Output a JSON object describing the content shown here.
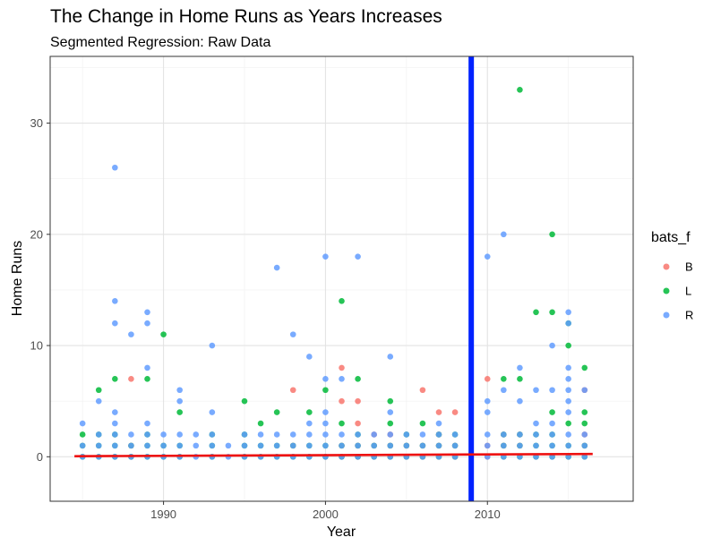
{
  "chart_data": {
    "type": "scatter",
    "title": "The Change in Home Runs as Years Increases",
    "subtitle": "Segmented Regression: Raw Data",
    "xlabel": "Year",
    "ylabel": "Home Runs",
    "xlim": [
      1983,
      2019
    ],
    "ylim": [
      -4,
      36
    ],
    "x_ticks": [
      1990,
      2000,
      2010
    ],
    "y_ticks": [
      0,
      10,
      20,
      30
    ],
    "grid": true,
    "legend": {
      "title": "bats_f",
      "position": "right",
      "entries": [
        {
          "label": "B",
          "color": "#F8766D"
        },
        {
          "label": "L",
          "color": "#00BA38"
        },
        {
          "label": "R",
          "color": "#619CFF"
        }
      ]
    },
    "vertical_line": {
      "x": 2009,
      "color": "#0022ff"
    },
    "regression_line": {
      "x": [
        1984.5,
        2016.5
      ],
      "y": [
        0.05,
        0.25
      ],
      "color": "#ee1111"
    },
    "series": [
      {
        "name": "B",
        "color": "#F8766D",
        "points": [
          [
            1988,
            7
          ],
          [
            1988,
            1
          ],
          [
            1988,
            0
          ],
          [
            1998,
            6
          ],
          [
            1998,
            1
          ],
          [
            2001,
            8
          ],
          [
            2001,
            5
          ],
          [
            2001,
            1
          ],
          [
            2001,
            0
          ],
          [
            2002,
            5
          ],
          [
            2002,
            3
          ],
          [
            2002,
            1
          ],
          [
            2002,
            0
          ],
          [
            2003,
            2
          ],
          [
            2003,
            1
          ],
          [
            2003,
            0
          ],
          [
            2004,
            2
          ],
          [
            2004,
            1
          ],
          [
            2004,
            0
          ],
          [
            2005,
            1
          ],
          [
            2005,
            0
          ],
          [
            2006,
            6
          ],
          [
            2006,
            1
          ],
          [
            2006,
            0
          ],
          [
            2007,
            4
          ],
          [
            2007,
            2
          ],
          [
            2007,
            1
          ],
          [
            2007,
            0
          ],
          [
            2008,
            4
          ],
          [
            2008,
            1
          ],
          [
            2008,
            0
          ],
          [
            2010,
            7
          ],
          [
            2010,
            1
          ],
          [
            2010,
            0
          ],
          [
            2011,
            2
          ],
          [
            2011,
            1
          ],
          [
            2012,
            2
          ],
          [
            2012,
            1
          ],
          [
            2016,
            6
          ],
          [
            2016,
            2
          ],
          [
            2016,
            1
          ]
        ]
      },
      {
        "name": "L",
        "color": "#00BA38",
        "points": [
          [
            1985,
            2
          ],
          [
            1985,
            1
          ],
          [
            1985,
            0
          ],
          [
            1986,
            6
          ],
          [
            1986,
            2
          ],
          [
            1986,
            1
          ],
          [
            1986,
            0
          ],
          [
            1987,
            7
          ],
          [
            1987,
            2
          ],
          [
            1987,
            1
          ],
          [
            1987,
            0
          ],
          [
            1988,
            1
          ],
          [
            1988,
            0
          ],
          [
            1989,
            7
          ],
          [
            1989,
            2
          ],
          [
            1989,
            1
          ],
          [
            1989,
            0
          ],
          [
            1990,
            11
          ],
          [
            1990,
            1
          ],
          [
            1990,
            0
          ],
          [
            1991,
            4
          ],
          [
            1991,
            1
          ],
          [
            1991,
            0
          ],
          [
            1993,
            2
          ],
          [
            1993,
            1
          ],
          [
            1993,
            0
          ],
          [
            1995,
            5
          ],
          [
            1995,
            2
          ],
          [
            1995,
            1
          ],
          [
            1995,
            0
          ],
          [
            1996,
            3
          ],
          [
            1996,
            1
          ],
          [
            1996,
            0
          ],
          [
            1997,
            4
          ],
          [
            1997,
            1
          ],
          [
            1997,
            0
          ],
          [
            1998,
            1
          ],
          [
            1998,
            0
          ],
          [
            1999,
            4
          ],
          [
            1999,
            1
          ],
          [
            1999,
            0
          ],
          [
            2000,
            6
          ],
          [
            2000,
            1
          ],
          [
            2000,
            0
          ],
          [
            2001,
            14
          ],
          [
            2001,
            3
          ],
          [
            2001,
            1
          ],
          [
            2001,
            0
          ],
          [
            2002,
            7
          ],
          [
            2002,
            2
          ],
          [
            2002,
            1
          ],
          [
            2002,
            0
          ],
          [
            2003,
            1
          ],
          [
            2003,
            0
          ],
          [
            2004,
            5
          ],
          [
            2004,
            3
          ],
          [
            2004,
            1
          ],
          [
            2004,
            0
          ],
          [
            2005,
            2
          ],
          [
            2005,
            1
          ],
          [
            2005,
            0
          ],
          [
            2006,
            3
          ],
          [
            2006,
            1
          ],
          [
            2006,
            0
          ],
          [
            2007,
            2
          ],
          [
            2007,
            1
          ],
          [
            2007,
            0
          ],
          [
            2008,
            2
          ],
          [
            2008,
            1
          ],
          [
            2008,
            0
          ],
          [
            2011,
            7
          ],
          [
            2011,
            2
          ],
          [
            2011,
            1
          ],
          [
            2011,
            0
          ],
          [
            2012,
            33
          ],
          [
            2012,
            7
          ],
          [
            2012,
            2
          ],
          [
            2012,
            1
          ],
          [
            2012,
            0
          ],
          [
            2013,
            13
          ],
          [
            2013,
            2
          ],
          [
            2013,
            1
          ],
          [
            2013,
            0
          ],
          [
            2014,
            20
          ],
          [
            2014,
            13
          ],
          [
            2014,
            4
          ],
          [
            2014,
            2
          ],
          [
            2014,
            1
          ],
          [
            2014,
            0
          ],
          [
            2015,
            12
          ],
          [
            2015,
            10
          ],
          [
            2015,
            3
          ],
          [
            2015,
            1
          ],
          [
            2015,
            0
          ],
          [
            2016,
            8
          ],
          [
            2016,
            4
          ],
          [
            2016,
            3
          ],
          [
            2016,
            1
          ],
          [
            2016,
            0
          ]
        ]
      },
      {
        "name": "R",
        "color": "#619CFF",
        "points": [
          [
            1985,
            3
          ],
          [
            1985,
            1
          ],
          [
            1985,
            0
          ],
          [
            1986,
            5
          ],
          [
            1986,
            2
          ],
          [
            1986,
            1
          ],
          [
            1986,
            0
          ],
          [
            1987,
            26
          ],
          [
            1987,
            14
          ],
          [
            1987,
            12
          ],
          [
            1987,
            4
          ],
          [
            1987,
            3
          ],
          [
            1987,
            2
          ],
          [
            1987,
            1
          ],
          [
            1987,
            0
          ],
          [
            1988,
            11
          ],
          [
            1988,
            2
          ],
          [
            1988,
            1
          ],
          [
            1988,
            0
          ],
          [
            1989,
            13
          ],
          [
            1989,
            12
          ],
          [
            1989,
            8
          ],
          [
            1989,
            3
          ],
          [
            1989,
            2
          ],
          [
            1989,
            1
          ],
          [
            1989,
            0
          ],
          [
            1990,
            2
          ],
          [
            1990,
            1
          ],
          [
            1990,
            0
          ],
          [
            1991,
            6
          ],
          [
            1991,
            5
          ],
          [
            1991,
            2
          ],
          [
            1991,
            1
          ],
          [
            1991,
            0
          ],
          [
            1992,
            2
          ],
          [
            1992,
            1
          ],
          [
            1992,
            0
          ],
          [
            1993,
            10
          ],
          [
            1993,
            4
          ],
          [
            1993,
            2
          ],
          [
            1993,
            1
          ],
          [
            1993,
            0
          ],
          [
            1994,
            1
          ],
          [
            1994,
            0
          ],
          [
            1995,
            2
          ],
          [
            1995,
            1
          ],
          [
            1995,
            0
          ],
          [
            1996,
            2
          ],
          [
            1996,
            1
          ],
          [
            1996,
            0
          ],
          [
            1997,
            17
          ],
          [
            1997,
            2
          ],
          [
            1997,
            1
          ],
          [
            1997,
            0
          ],
          [
            1998,
            11
          ],
          [
            1998,
            2
          ],
          [
            1998,
            1
          ],
          [
            1998,
            0
          ],
          [
            1999,
            9
          ],
          [
            1999,
            3
          ],
          [
            1999,
            2
          ],
          [
            1999,
            1
          ],
          [
            1999,
            0
          ],
          [
            2000,
            18
          ],
          [
            2000,
            7
          ],
          [
            2000,
            4
          ],
          [
            2000,
            3
          ],
          [
            2000,
            2
          ],
          [
            2000,
            1
          ],
          [
            2000,
            0
          ],
          [
            2001,
            7
          ],
          [
            2001,
            2
          ],
          [
            2001,
            1
          ],
          [
            2001,
            0
          ],
          [
            2002,
            18
          ],
          [
            2002,
            2
          ],
          [
            2002,
            1
          ],
          [
            2002,
            0
          ],
          [
            2003,
            2
          ],
          [
            2003,
            1
          ],
          [
            2003,
            0
          ],
          [
            2004,
            9
          ],
          [
            2004,
            4
          ],
          [
            2004,
            2
          ],
          [
            2004,
            1
          ],
          [
            2004,
            0
          ],
          [
            2005,
            2
          ],
          [
            2005,
            1
          ],
          [
            2005,
            0
          ],
          [
            2006,
            2
          ],
          [
            2006,
            1
          ],
          [
            2006,
            0
          ],
          [
            2007,
            3
          ],
          [
            2007,
            2
          ],
          [
            2007,
            1
          ],
          [
            2007,
            0
          ],
          [
            2008,
            2
          ],
          [
            2008,
            1
          ],
          [
            2008,
            0
          ],
          [
            2010,
            18
          ],
          [
            2010,
            5
          ],
          [
            2010,
            4
          ],
          [
            2010,
            2
          ],
          [
            2010,
            1
          ],
          [
            2010,
            0
          ],
          [
            2011,
            20
          ],
          [
            2011,
            6
          ],
          [
            2011,
            2
          ],
          [
            2011,
            1
          ],
          [
            2011,
            0
          ],
          [
            2012,
            8
          ],
          [
            2012,
            5
          ],
          [
            2012,
            2
          ],
          [
            2012,
            1
          ],
          [
            2012,
            0
          ],
          [
            2013,
            6
          ],
          [
            2013,
            3
          ],
          [
            2013,
            2
          ],
          [
            2013,
            1
          ],
          [
            2013,
            0
          ],
          [
            2014,
            10
          ],
          [
            2014,
            6
          ],
          [
            2014,
            3
          ],
          [
            2014,
            2
          ],
          [
            2014,
            1
          ],
          [
            2014,
            0
          ],
          [
            2015,
            13
          ],
          [
            2015,
            12
          ],
          [
            2015,
            8
          ],
          [
            2015,
            7
          ],
          [
            2015,
            6
          ],
          [
            2015,
            5
          ],
          [
            2015,
            4
          ],
          [
            2015,
            2
          ],
          [
            2015,
            1
          ],
          [
            2015,
            0
          ],
          [
            2016,
            6
          ],
          [
            2016,
            2
          ],
          [
            2016,
            1
          ],
          [
            2016,
            0
          ]
        ]
      }
    ]
  }
}
